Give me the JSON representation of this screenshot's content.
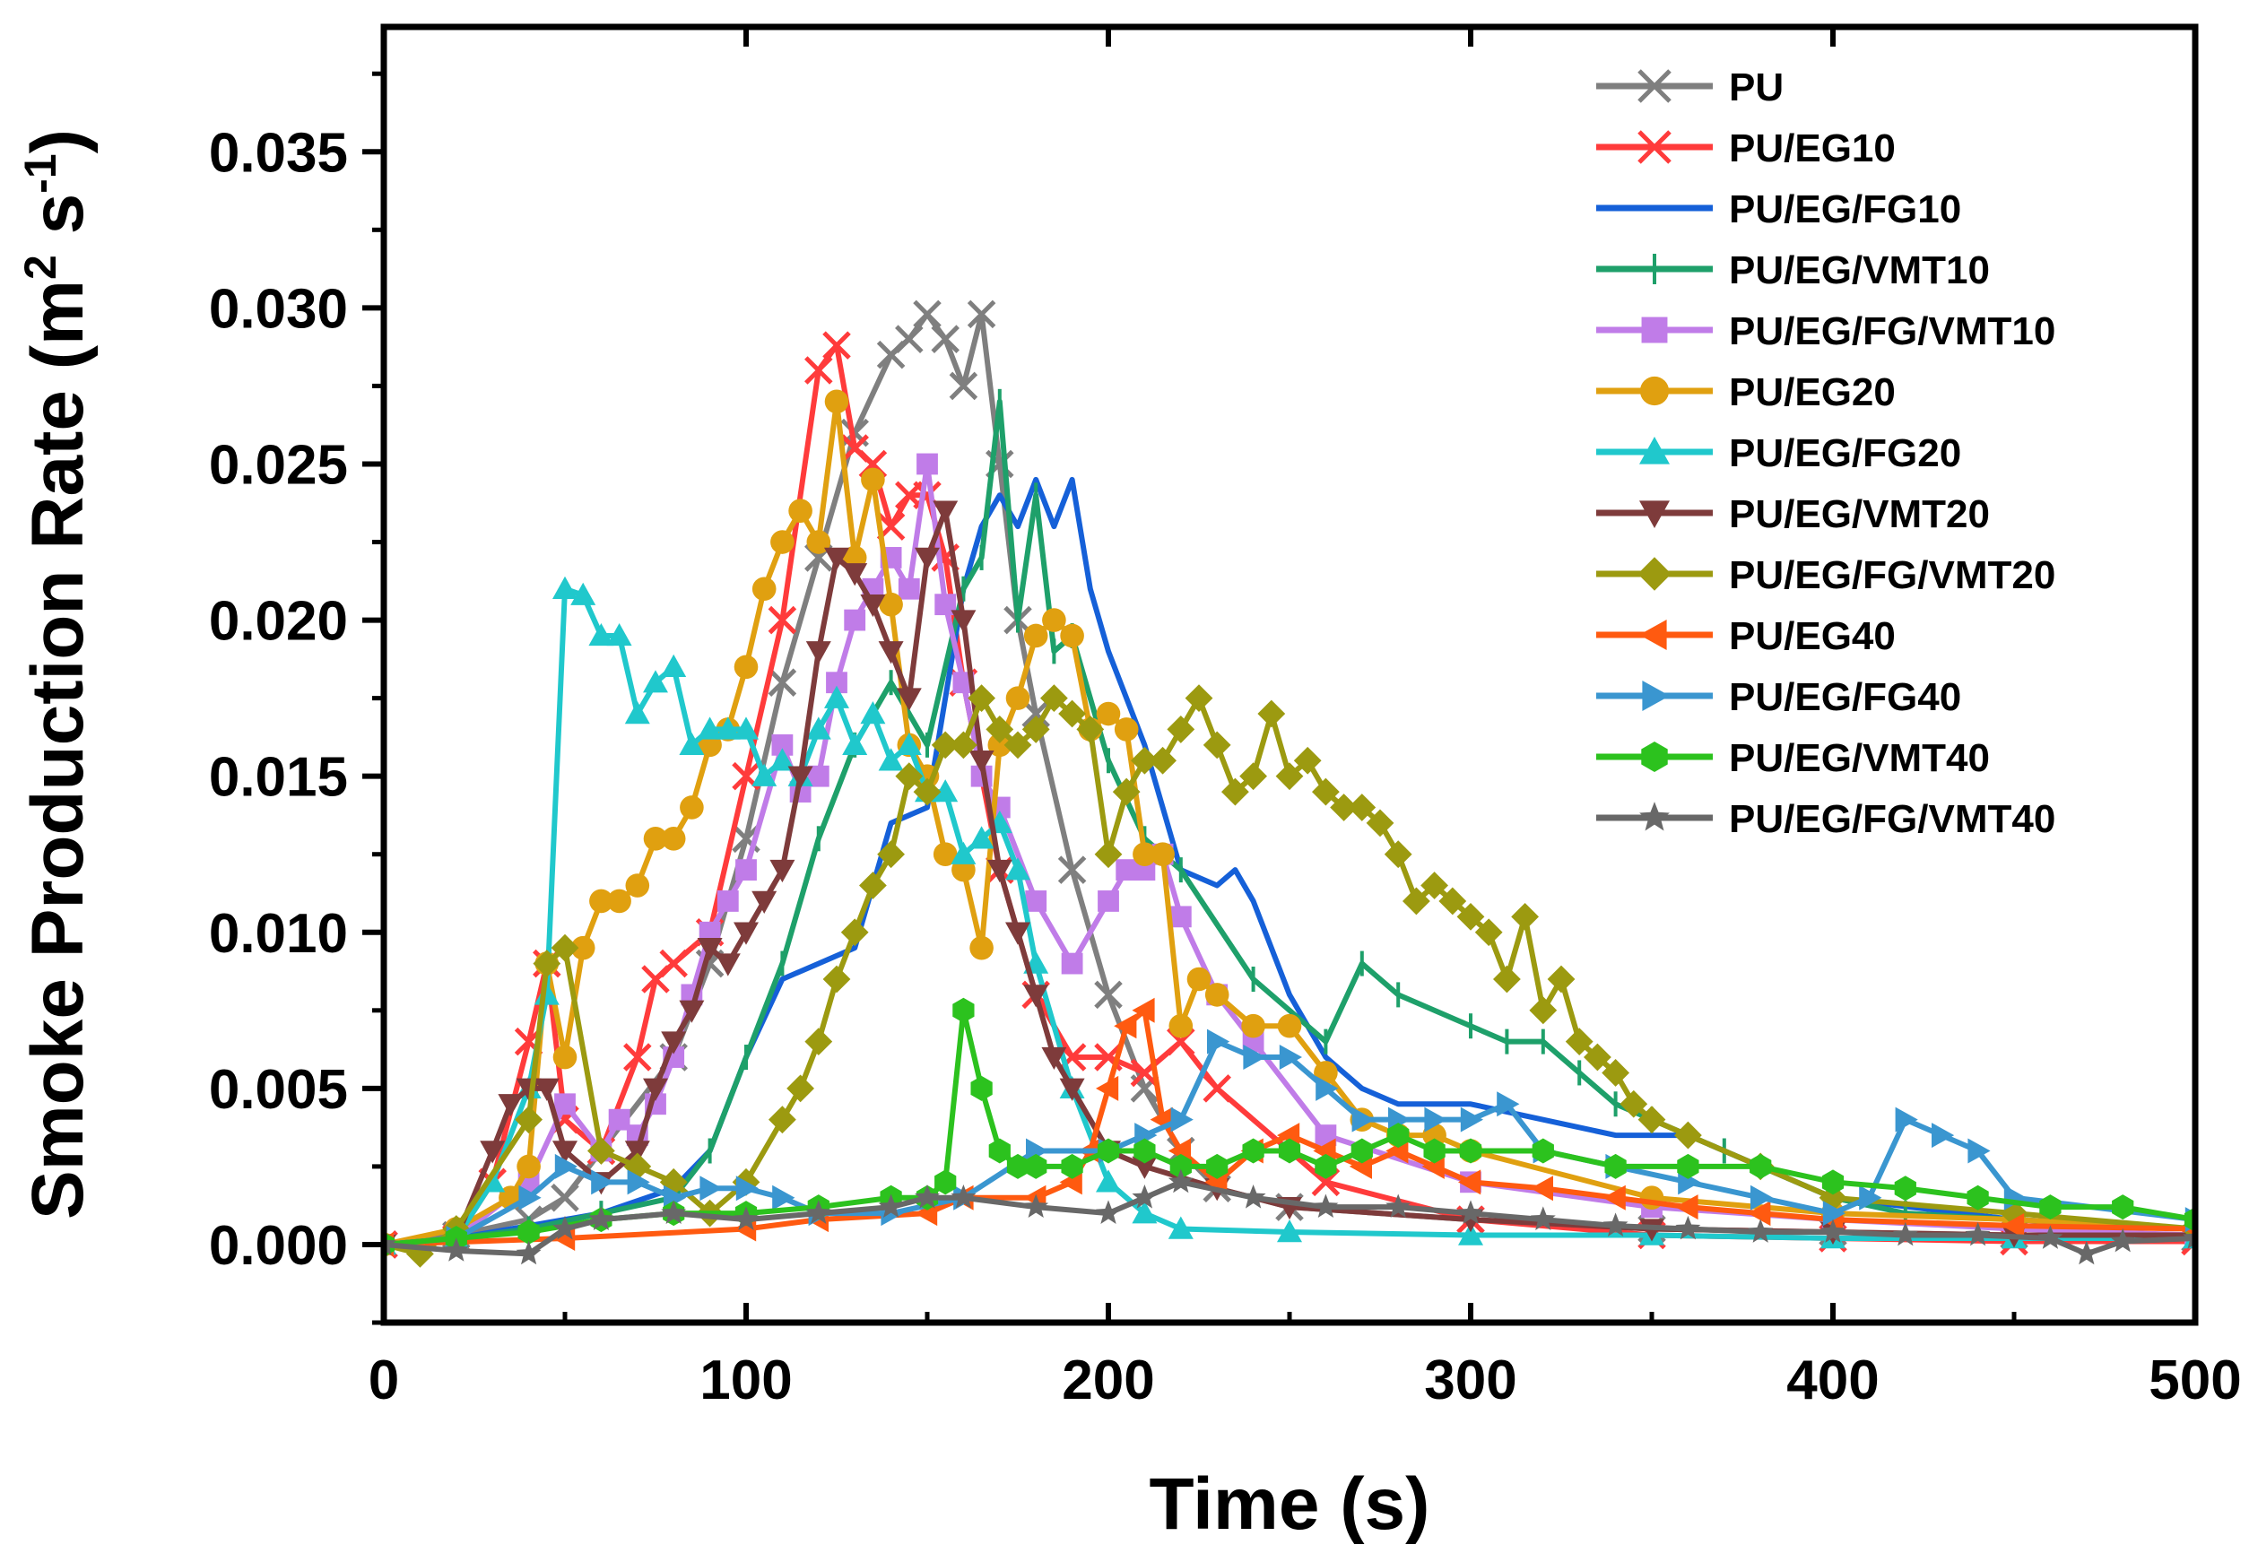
{
  "chart_data": {
    "type": "line",
    "title": "",
    "xlabel": "Time (s)",
    "ylabel": "Smoke Production Rate (m2 s-1)",
    "ylabel_parts": {
      "prefix": "Smoke Production Rate (m",
      "sup1": "2",
      "mid": " s",
      "sup2": "-1",
      "suffix": ")"
    },
    "xlim": [
      0,
      500
    ],
    "ylim": [
      -0.0025,
      0.039
    ],
    "xticks": [
      "0",
      "100",
      "200",
      "300",
      "400",
      "500"
    ],
    "yticks": [
      "0.000",
      "0.005",
      "0.010",
      "0.015",
      "0.020",
      "0.025",
      "0.030",
      "0.035"
    ],
    "xtick_values": [
      0,
      100,
      200,
      300,
      400,
      500
    ],
    "ytick_values": [
      0,
      0.005,
      0.01,
      0.015,
      0.02,
      0.025,
      0.03,
      0.035
    ],
    "grid": false,
    "legend_position": "top-right",
    "series": [
      {
        "name": "PU",
        "color": "#7f7f7f",
        "marker": "cross",
        "x": [
          0,
          20,
          40,
          50,
          60,
          80,
          90,
          100,
          110,
          120,
          130,
          140,
          145,
          150,
          155,
          160,
          165,
          170,
          175,
          180,
          190,
          200,
          210,
          220,
          230,
          250,
          300,
          350,
          400,
          450,
          500
        ],
        "y": [
          0,
          0.0003,
          0.0008,
          0.0015,
          0.003,
          0.006,
          0.009,
          0.013,
          0.018,
          0.022,
          0.026,
          0.0285,
          0.029,
          0.0298,
          0.029,
          0.0275,
          0.0298,
          0.025,
          0.02,
          0.017,
          0.012,
          0.008,
          0.005,
          0.003,
          0.0018,
          0.0012,
          0.0008,
          0.0005,
          0.0004,
          0.0003,
          0.0002
        ]
      },
      {
        "name": "PU/EG10",
        "color": "#ff3b3b",
        "marker": "x",
        "x": [
          0,
          20,
          30,
          40,
          45,
          50,
          60,
          70,
          75,
          80,
          90,
          100,
          110,
          120,
          125,
          130,
          135,
          140,
          145,
          150,
          155,
          160,
          170,
          180,
          190,
          200,
          210,
          220,
          230,
          260,
          300,
          350,
          400,
          450,
          500
        ],
        "y": [
          0,
          0.0002,
          0.002,
          0.0065,
          0.009,
          0.004,
          0.003,
          0.006,
          0.0085,
          0.009,
          0.01,
          0.015,
          0.02,
          0.028,
          0.0288,
          0.0255,
          0.025,
          0.023,
          0.024,
          0.024,
          0.022,
          0.018,
          0.012,
          0.008,
          0.006,
          0.006,
          0.0055,
          0.0065,
          0.005,
          0.002,
          0.0008,
          0.0003,
          0.0002,
          0.0001,
          0.0001
        ]
      },
      {
        "name": "PU/EG/FG10",
        "color": "#1560d8",
        "marker": "none",
        "x": [
          0,
          20,
          40,
          60,
          80,
          90,
          100,
          110,
          120,
          130,
          140,
          150,
          160,
          165,
          170,
          175,
          180,
          185,
          190,
          195,
          200,
          210,
          220,
          230,
          235,
          240,
          250,
          260,
          270,
          280,
          300,
          320,
          340,
          360,
          380,
          400,
          450,
          500
        ],
        "y": [
          0,
          0.0002,
          0.0006,
          0.001,
          0.0018,
          0.003,
          0.006,
          0.0085,
          0.009,
          0.0095,
          0.0135,
          0.014,
          0.021,
          0.023,
          0.024,
          0.023,
          0.0245,
          0.023,
          0.0245,
          0.021,
          0.019,
          0.016,
          0.012,
          0.0115,
          0.012,
          0.011,
          0.008,
          0.006,
          0.005,
          0.0045,
          0.0045,
          0.004,
          0.0035,
          0.0035,
          0.0025,
          0.0015,
          0.0008,
          0.0005
        ]
      },
      {
        "name": "PU/EG/VMT10",
        "color": "#1ea06a",
        "marker": "plus",
        "x": [
          0,
          20,
          40,
          60,
          80,
          90,
          100,
          110,
          120,
          130,
          140,
          150,
          160,
          165,
          170,
          175,
          180,
          185,
          190,
          200,
          210,
          220,
          240,
          260,
          270,
          280,
          300,
          310,
          320,
          330,
          340,
          350,
          370,
          400,
          420,
          450,
          500
        ],
        "y": [
          0,
          0.0002,
          0.0005,
          0.001,
          0.0015,
          0.003,
          0.006,
          0.009,
          0.013,
          0.016,
          0.018,
          0.016,
          0.021,
          0.022,
          0.027,
          0.02,
          0.024,
          0.019,
          0.0195,
          0.0155,
          0.013,
          0.012,
          0.0085,
          0.0065,
          0.009,
          0.008,
          0.007,
          0.0065,
          0.0065,
          0.0055,
          0.0045,
          0.004,
          0.003,
          0.0015,
          0.001,
          0.0008,
          0.0005
        ]
      },
      {
        "name": "PU/EG/FG/VMT10",
        "color": "#c07ce8",
        "marker": "square",
        "x": [
          0,
          20,
          40,
          50,
          60,
          65,
          70,
          75,
          80,
          85,
          90,
          95,
          100,
          110,
          115,
          120,
          125,
          130,
          135,
          140,
          145,
          150,
          155,
          160,
          165,
          170,
          180,
          190,
          200,
          205,
          210,
          215,
          220,
          230,
          240,
          260,
          300,
          350,
          400,
          450,
          500
        ],
        "y": [
          0,
          0.0002,
          0.002,
          0.0045,
          0.003,
          0.004,
          0.0035,
          0.0045,
          0.006,
          0.008,
          0.01,
          0.011,
          0.012,
          0.016,
          0.0145,
          0.015,
          0.018,
          0.02,
          0.021,
          0.022,
          0.021,
          0.025,
          0.0205,
          0.018,
          0.015,
          0.014,
          0.011,
          0.009,
          0.011,
          0.012,
          0.012,
          0.0125,
          0.0105,
          0.008,
          0.0065,
          0.0035,
          0.002,
          0.0012,
          0.0008,
          0.0005,
          0.0003
        ]
      },
      {
        "name": "PU/EG20",
        "color": "#e0a010",
        "marker": "circle",
        "x": [
          0,
          20,
          35,
          40,
          45,
          50,
          55,
          60,
          65,
          70,
          75,
          80,
          85,
          90,
          95,
          100,
          105,
          110,
          115,
          120,
          125,
          130,
          135,
          140,
          145,
          150,
          155,
          160,
          165,
          170,
          175,
          180,
          185,
          190,
          195,
          200,
          205,
          210,
          215,
          220,
          225,
          230,
          240,
          250,
          260,
          270,
          280,
          290,
          300,
          350,
          400,
          450,
          500
        ],
        "y": [
          0,
          0.0005,
          0.0015,
          0.0025,
          0.009,
          0.006,
          0.0095,
          0.011,
          0.011,
          0.0115,
          0.013,
          0.013,
          0.014,
          0.016,
          0.0165,
          0.0185,
          0.021,
          0.0225,
          0.0235,
          0.0225,
          0.027,
          0.022,
          0.0245,
          0.0205,
          0.016,
          0.015,
          0.0125,
          0.012,
          0.0095,
          0.016,
          0.0175,
          0.0195,
          0.02,
          0.0195,
          0.0165,
          0.017,
          0.0165,
          0.0125,
          0.0125,
          0.007,
          0.0085,
          0.008,
          0.007,
          0.007,
          0.0055,
          0.004,
          0.0035,
          0.0035,
          0.003,
          0.0015,
          0.001,
          0.0008,
          0.0005
        ]
      },
      {
        "name": "PU/EG/FG20",
        "color": "#20c8cc",
        "marker": "triangle-up",
        "x": [
          0,
          20,
          30,
          40,
          45,
          50,
          55,
          60,
          65,
          70,
          75,
          80,
          85,
          90,
          95,
          100,
          105,
          110,
          115,
          120,
          125,
          130,
          135,
          140,
          145,
          150,
          155,
          160,
          165,
          170,
          175,
          180,
          190,
          200,
          210,
          220,
          250,
          300,
          350,
          400,
          450,
          500
        ],
        "y": [
          0,
          0.0002,
          0.002,
          0.005,
          0.008,
          0.021,
          0.0208,
          0.0195,
          0.0195,
          0.017,
          0.018,
          0.0185,
          0.016,
          0.0165,
          0.0165,
          0.0165,
          0.015,
          0.0155,
          0.015,
          0.0165,
          0.0175,
          0.016,
          0.017,
          0.0155,
          0.016,
          0.0145,
          0.0145,
          0.0125,
          0.013,
          0.0135,
          0.012,
          0.009,
          0.005,
          0.002,
          0.001,
          0.0005,
          0.0004,
          0.0003,
          0.0003,
          0.0002,
          0.0002,
          0.0002
        ]
      },
      {
        "name": "PU/EG/VMT20",
        "color": "#7e3b3b",
        "marker": "triangle-down",
        "x": [
          0,
          20,
          30,
          35,
          40,
          45,
          50,
          60,
          70,
          75,
          80,
          85,
          90,
          95,
          100,
          105,
          110,
          115,
          120,
          125,
          130,
          135,
          140,
          145,
          150,
          155,
          160,
          165,
          170,
          175,
          180,
          185,
          190,
          200,
          210,
          230,
          250,
          300,
          350,
          400,
          450,
          500
        ],
        "y": [
          0,
          0.0002,
          0.003,
          0.0045,
          0.005,
          0.005,
          0.003,
          0.002,
          0.003,
          0.005,
          0.0065,
          0.0075,
          0.0095,
          0.009,
          0.01,
          0.011,
          0.012,
          0.015,
          0.019,
          0.022,
          0.0215,
          0.0205,
          0.019,
          0.0175,
          0.022,
          0.0235,
          0.02,
          0.0155,
          0.012,
          0.01,
          0.008,
          0.006,
          0.005,
          0.003,
          0.0025,
          0.0018,
          0.0012,
          0.0008,
          0.0005,
          0.0004,
          0.0003,
          0.0003
        ]
      },
      {
        "name": "PU/EG/FG/VMT20",
        "color": "#9c9a10",
        "marker": "diamond",
        "x": [
          0,
          10,
          20,
          40,
          45,
          50,
          60,
          70,
          80,
          90,
          100,
          110,
          115,
          120,
          125,
          130,
          135,
          140,
          145,
          150,
          155,
          160,
          165,
          170,
          175,
          180,
          185,
          190,
          195,
          200,
          205,
          210,
          215,
          220,
          225,
          230,
          235,
          240,
          245,
          250,
          255,
          260,
          265,
          270,
          275,
          280,
          285,
          290,
          295,
          300,
          305,
          310,
          315,
          320,
          325,
          330,
          335,
          340,
          345,
          350,
          360,
          380,
          400,
          450,
          500
        ],
        "y": [
          0,
          -0.0003,
          0.0005,
          0.004,
          0.009,
          0.0095,
          0.003,
          0.0025,
          0.002,
          0.001,
          0.002,
          0.004,
          0.005,
          0.0065,
          0.0085,
          0.01,
          0.0115,
          0.0125,
          0.015,
          0.0145,
          0.016,
          0.016,
          0.0175,
          0.0165,
          0.016,
          0.0165,
          0.0175,
          0.017,
          0.0165,
          0.0125,
          0.0145,
          0.0155,
          0.0155,
          0.0165,
          0.0175,
          0.016,
          0.0145,
          0.015,
          0.017,
          0.015,
          0.0155,
          0.0145,
          0.014,
          0.014,
          0.0135,
          0.0125,
          0.011,
          0.0115,
          0.011,
          0.0105,
          0.01,
          0.0085,
          0.0105,
          0.0075,
          0.0085,
          0.0065,
          0.006,
          0.0055,
          0.0045,
          0.004,
          0.0035,
          0.0025,
          0.0015,
          0.001,
          0.0005
        ]
      },
      {
        "name": "PU/EG40",
        "color": "#ff5a10",
        "marker": "triangle-left",
        "x": [
          0,
          50,
          100,
          120,
          150,
          160,
          180,
          190,
          195,
          200,
          205,
          210,
          215,
          220,
          230,
          240,
          250,
          260,
          270,
          280,
          290,
          300,
          320,
          340,
          360,
          380,
          400,
          450,
          500
        ],
        "y": [
          0,
          0.0002,
          0.0005,
          0.0008,
          0.001,
          0.0015,
          0.0015,
          0.002,
          0.003,
          0.005,
          0.007,
          0.0075,
          0.004,
          0.003,
          0.002,
          0.003,
          0.0035,
          0.003,
          0.0025,
          0.003,
          0.0025,
          0.002,
          0.0018,
          0.0015,
          0.0012,
          0.001,
          0.0008,
          0.0006,
          0.0005
        ]
      },
      {
        "name": "PU/EG/FG40",
        "color": "#3a96d0",
        "marker": "triangle-right",
        "x": [
          0,
          20,
          40,
          50,
          60,
          70,
          80,
          90,
          100,
          110,
          120,
          140,
          160,
          180,
          200,
          210,
          220,
          230,
          240,
          250,
          260,
          270,
          280,
          290,
          300,
          310,
          320,
          340,
          360,
          380,
          400,
          410,
          420,
          430,
          440,
          450,
          500
        ],
        "y": [
          0,
          0.0002,
          0.0015,
          0.0025,
          0.002,
          0.002,
          0.0015,
          0.0018,
          0.0018,
          0.0015,
          0.001,
          0.001,
          0.0015,
          0.003,
          0.003,
          0.0035,
          0.004,
          0.0065,
          0.006,
          0.006,
          0.005,
          0.004,
          0.004,
          0.004,
          0.004,
          0.0045,
          0.003,
          0.0025,
          0.002,
          0.0015,
          0.001,
          0.0015,
          0.004,
          0.0035,
          0.003,
          0.0015,
          0.0008
        ]
      },
      {
        "name": "PU/EG/VMT40",
        "color": "#2cc21e",
        "marker": "hexagon",
        "x": [
          0,
          20,
          40,
          60,
          80,
          100,
          120,
          140,
          150,
          155,
          160,
          165,
          170,
          175,
          180,
          190,
          200,
          210,
          220,
          230,
          240,
          250,
          260,
          270,
          280,
          290,
          300,
          320,
          340,
          360,
          380,
          400,
          420,
          440,
          460,
          480,
          500
        ],
        "y": [
          0,
          0.0002,
          0.0004,
          0.0008,
          0.001,
          0.001,
          0.0012,
          0.0015,
          0.0015,
          0.002,
          0.0075,
          0.005,
          0.003,
          0.0025,
          0.0025,
          0.0025,
          0.003,
          0.003,
          0.0025,
          0.0025,
          0.003,
          0.003,
          0.0025,
          0.003,
          0.0035,
          0.003,
          0.003,
          0.003,
          0.0025,
          0.0025,
          0.0025,
          0.002,
          0.0018,
          0.0015,
          0.0012,
          0.0012,
          0.0008
        ]
      },
      {
        "name": "PU/EG/FG/VMT40",
        "color": "#686868",
        "marker": "star",
        "x": [
          0,
          20,
          40,
          50,
          60,
          80,
          100,
          120,
          140,
          150,
          160,
          180,
          200,
          210,
          220,
          240,
          260,
          280,
          300,
          320,
          340,
          360,
          380,
          400,
          420,
          440,
          460,
          470,
          480,
          500
        ],
        "y": [
          0,
          -0.0002,
          -0.0003,
          0.0005,
          0.0008,
          0.001,
          0.0008,
          0.001,
          0.0012,
          0.0015,
          0.0015,
          0.0012,
          0.001,
          0.0015,
          0.002,
          0.0015,
          0.0012,
          0.0012,
          0.001,
          0.0008,
          0.0006,
          0.0005,
          0.0004,
          0.0004,
          0.0003,
          0.0003,
          0.0002,
          -0.0003,
          0.0001,
          0.0002
        ]
      }
    ]
  }
}
